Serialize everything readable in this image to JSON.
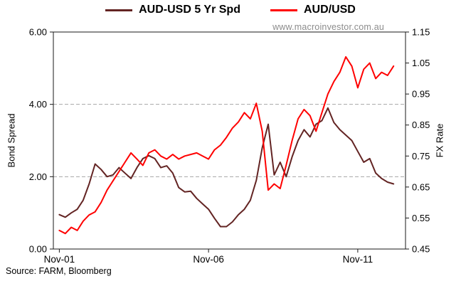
{
  "watermark": "www.macroinvestor.com.au",
  "source_note": "Source:  FARM, Bloomberg",
  "legend": [
    {
      "label": "AUD-USD 5 Yr Spd",
      "color": "#632423"
    },
    {
      "label": "AUD/USD",
      "color": "#ff0000"
    }
  ],
  "colors": {
    "gridline": "#a6a6a6",
    "frame": "#1a1a1a",
    "tick_text": "#000000"
  },
  "chart_data": {
    "type": "line",
    "title": "",
    "x_domain": [
      -0.2,
      11.6
    ],
    "x_axis": {
      "tick_positions": [
        0,
        5,
        10
      ],
      "tick_labels": [
        "Nov-01",
        "Nov-06",
        "Nov-11"
      ]
    },
    "left_axis": {
      "label": "Bond Spread",
      "min": 0,
      "max": 6,
      "ticks": [
        0,
        2,
        4,
        6
      ],
      "tick_labels": [
        "0.00",
        "2.00",
        "4.00",
        "6.00"
      ]
    },
    "right_axis": {
      "label": "FX Rate",
      "min": 0.45,
      "max": 1.15,
      "ticks": [
        0.45,
        0.55,
        0.65,
        0.75,
        0.85,
        0.95,
        1.05,
        1.15
      ],
      "tick_labels": [
        "0.45",
        "0.55",
        "0.65",
        "0.75",
        "0.85",
        "0.95",
        "1.05",
        "1.15"
      ]
    },
    "gridlines_left": [
      2,
      4
    ],
    "x_unit": "years since Nov-01",
    "x": [
      0,
      0.2,
      0.4,
      0.6,
      0.8,
      1,
      1.2,
      1.4,
      1.6,
      1.8,
      2,
      2.2,
      2.4,
      2.6,
      2.8,
      3,
      3.2,
      3.4,
      3.6,
      3.8,
      4,
      4.2,
      4.4,
      4.6,
      4.8,
      5,
      5.2,
      5.4,
      5.6,
      5.8,
      6,
      6.2,
      6.4,
      6.6,
      6.8,
      7,
      7.2,
      7.4,
      7.6,
      7.8,
      8,
      8.2,
      8.4,
      8.6,
      8.8,
      9,
      9.2,
      9.4,
      9.6,
      9.8,
      10,
      10.2,
      10.4,
      10.6,
      10.8,
      11,
      11.2
    ],
    "series": [
      {
        "name": "AUD-USD 5 Yr Spd",
        "axis": "left",
        "color": "#632423",
        "values": [
          0.95,
          0.88,
          1.0,
          1.1,
          1.35,
          1.8,
          2.35,
          2.2,
          2.0,
          2.05,
          2.25,
          2.1,
          1.95,
          2.25,
          2.5,
          2.58,
          2.5,
          2.25,
          2.3,
          2.1,
          1.7,
          1.58,
          1.6,
          1.4,
          1.25,
          1.1,
          0.85,
          0.62,
          0.62,
          0.75,
          0.95,
          1.1,
          1.35,
          1.9,
          2.8,
          3.45,
          2.05,
          2.4,
          2.0,
          2.55,
          3.0,
          3.3,
          3.1,
          3.45,
          3.55,
          3.9,
          3.5,
          3.3,
          3.15,
          3.0,
          2.7,
          2.4,
          2.5,
          2.1,
          1.95,
          1.85,
          1.8
        ]
      },
      {
        "name": "AUD/USD",
        "axis": "right",
        "color": "#ff0000",
        "values": [
          0.51,
          0.5,
          0.52,
          0.51,
          0.54,
          0.56,
          0.57,
          0.6,
          0.64,
          0.67,
          0.7,
          0.73,
          0.76,
          0.74,
          0.72,
          0.76,
          0.77,
          0.75,
          0.74,
          0.755,
          0.74,
          0.75,
          0.755,
          0.76,
          0.75,
          0.74,
          0.77,
          0.785,
          0.81,
          0.84,
          0.86,
          0.89,
          0.87,
          0.92,
          0.83,
          0.64,
          0.66,
          0.645,
          0.72,
          0.8,
          0.87,
          0.9,
          0.88,
          0.83,
          0.89,
          0.95,
          0.99,
          1.02,
          1.07,
          1.04,
          0.97,
          1.03,
          1.05,
          1.0,
          1.02,
          1.01,
          1.04
        ]
      }
    ]
  }
}
